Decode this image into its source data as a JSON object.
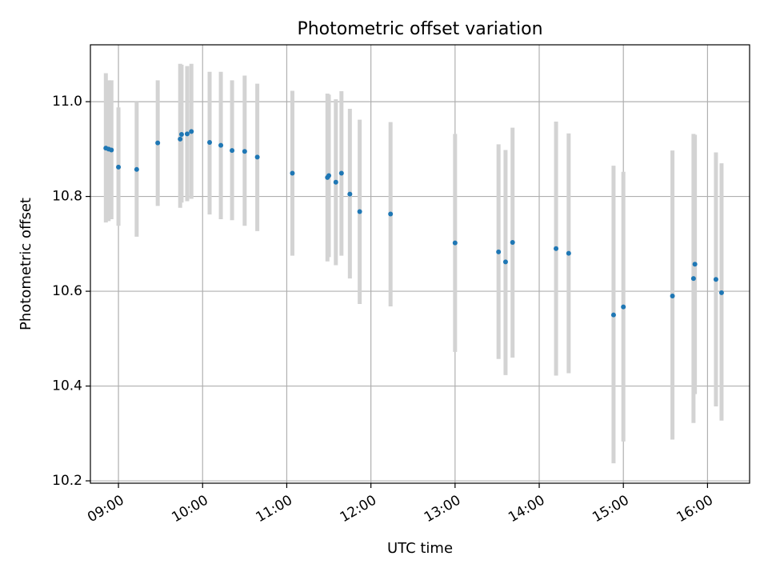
{
  "chart_data": {
    "type": "scatter",
    "title": "Photometric offset variation",
    "xlabel": "UTC time",
    "ylabel": "Photometric offset",
    "x_ticks": [
      "09:00",
      "10:00",
      "11:00",
      "12:00",
      "13:00",
      "14:00",
      "15:00",
      "16:00"
    ],
    "y_ticks": [
      "10.2",
      "10.4",
      "10.6",
      "10.8",
      "11.0"
    ],
    "xlim": [
      "08:40",
      "16:30"
    ],
    "ylim": [
      10.195,
      11.12
    ],
    "grid": true,
    "colors": {
      "point": "#1f77b4",
      "error_bar": "#d3d3d3"
    },
    "points": [
      {
        "t": "08:51",
        "y": 10.902,
        "lo": 10.745,
        "hi": 11.06
      },
      {
        "t": "08:53",
        "y": 10.9,
        "lo": 10.748,
        "hi": 11.045
      },
      {
        "t": "08:55",
        "y": 10.898,
        "lo": 10.752,
        "hi": 11.045
      },
      {
        "t": "09:00",
        "y": 10.862,
        "lo": 10.738,
        "hi": 10.988
      },
      {
        "t": "09:13",
        "y": 10.857,
        "lo": 10.715,
        "hi": 11.0
      },
      {
        "t": "09:28",
        "y": 10.913,
        "lo": 10.78,
        "hi": 11.045
      },
      {
        "t": "09:44",
        "y": 10.921,
        "lo": 10.776,
        "hi": 11.08
      },
      {
        "t": "09:45",
        "y": 10.931,
        "lo": 10.787,
        "hi": 11.078
      },
      {
        "t": "09:49",
        "y": 10.932,
        "lo": 10.79,
        "hi": 11.075
      },
      {
        "t": "09:52",
        "y": 10.937,
        "lo": 10.795,
        "hi": 11.08
      },
      {
        "t": "10:05",
        "y": 10.914,
        "lo": 10.762,
        "hi": 11.063
      },
      {
        "t": "10:13",
        "y": 10.908,
        "lo": 10.752,
        "hi": 11.063
      },
      {
        "t": "10:21",
        "y": 10.897,
        "lo": 10.75,
        "hi": 11.045
      },
      {
        "t": "10:30",
        "y": 10.895,
        "lo": 10.738,
        "hi": 11.055
      },
      {
        "t": "10:39",
        "y": 10.883,
        "lo": 10.727,
        "hi": 11.038
      },
      {
        "t": "11:04",
        "y": 10.849,
        "lo": 10.675,
        "hi": 11.023
      },
      {
        "t": "11:29",
        "y": 10.84,
        "lo": 10.663,
        "hi": 11.017
      },
      {
        "t": "11:30",
        "y": 10.844,
        "lo": 10.672,
        "hi": 11.015
      },
      {
        "t": "11:35",
        "y": 10.83,
        "lo": 10.655,
        "hi": 11.005
      },
      {
        "t": "11:39",
        "y": 10.849,
        "lo": 10.675,
        "hi": 11.022
      },
      {
        "t": "11:45",
        "y": 10.805,
        "lo": 10.627,
        "hi": 10.985
      },
      {
        "t": "11:52",
        "y": 10.768,
        "lo": 10.573,
        "hi": 10.962
      },
      {
        "t": "12:14",
        "y": 10.763,
        "lo": 10.568,
        "hi": 10.957
      },
      {
        "t": "13:00",
        "y": 10.702,
        "lo": 10.472,
        "hi": 10.932
      },
      {
        "t": "13:31",
        "y": 10.683,
        "lo": 10.457,
        "hi": 10.91
      },
      {
        "t": "13:36",
        "y": 10.662,
        "lo": 10.423,
        "hi": 10.898
      },
      {
        "t": "13:41",
        "y": 10.703,
        "lo": 10.46,
        "hi": 10.945
      },
      {
        "t": "14:12",
        "y": 10.69,
        "lo": 10.422,
        "hi": 10.958
      },
      {
        "t": "14:21",
        "y": 10.68,
        "lo": 10.427,
        "hi": 10.933
      },
      {
        "t": "14:53",
        "y": 10.55,
        "lo": 10.237,
        "hi": 10.865
      },
      {
        "t": "15:00",
        "y": 10.567,
        "lo": 10.283,
        "hi": 10.852
      },
      {
        "t": "15:35",
        "y": 10.59,
        "lo": 10.287,
        "hi": 10.897
      },
      {
        "t": "15:50",
        "y": 10.627,
        "lo": 10.322,
        "hi": 10.932
      },
      {
        "t": "15:51",
        "y": 10.657,
        "lo": 10.383,
        "hi": 10.93
      },
      {
        "t": "16:06",
        "y": 10.625,
        "lo": 10.357,
        "hi": 10.893
      },
      {
        "t": "16:10",
        "y": 10.597,
        "lo": 10.327,
        "hi": 10.87
      }
    ]
  }
}
